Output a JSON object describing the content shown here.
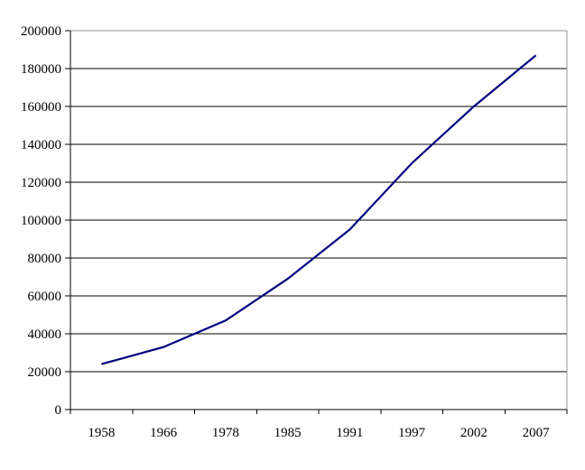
{
  "chart_data": {
    "type": "line",
    "title": "",
    "xlabel": "",
    "ylabel": "",
    "categories": [
      "1958",
      "1966",
      "1978",
      "1985",
      "1991",
      "1997",
      "2002",
      "2007"
    ],
    "series": [
      {
        "name": "",
        "values": [
          24000,
          33000,
          47000,
          69000,
          95000,
          130000,
          160000,
          187000
        ]
      }
    ],
    "ylim": [
      0,
      200000
    ],
    "ytick_step": 20000,
    "ytick_labels": [
      "0",
      "20000",
      "40000",
      "60000",
      "80000",
      "100000",
      "120000",
      "140000",
      "160000",
      "180000",
      "200000"
    ],
    "grid": true,
    "legend": "none",
    "markers": "none"
  },
  "colors": {
    "line": "#000080",
    "gridline": "#000000",
    "axis": "#000000",
    "plot_border": "#949494",
    "background": "#ffffff",
    "text": "#000000"
  }
}
